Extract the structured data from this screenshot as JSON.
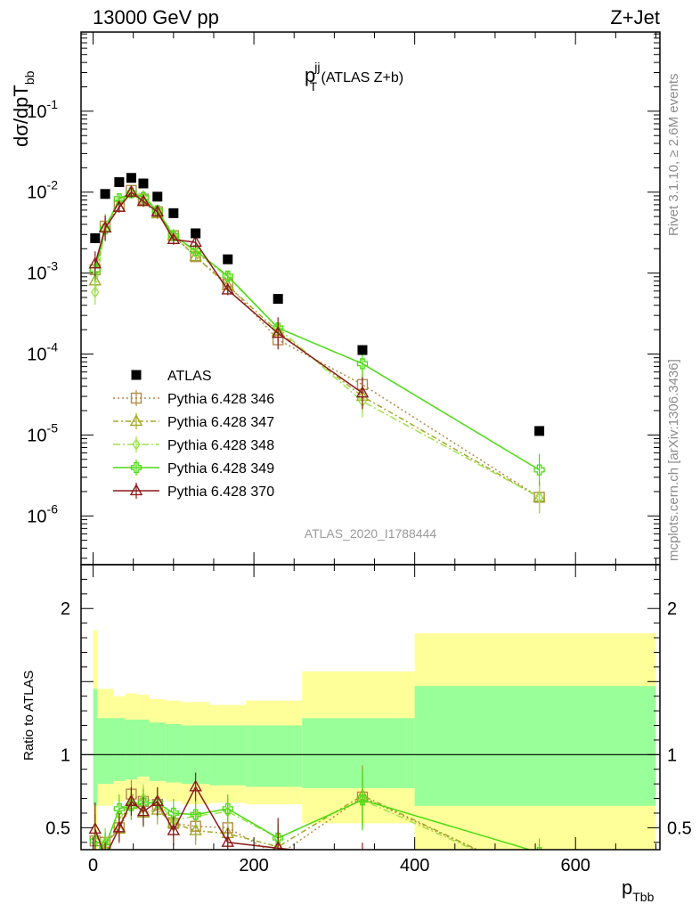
{
  "header": {
    "beam": "13000 GeV pp",
    "process": "Z+Jet"
  },
  "plot_title": {
    "main": "p",
    "sup": "jj",
    "sub": "T",
    "suffix": " (ATLAS Z+b)"
  },
  "main_ylabel": {
    "main": "dσ/dpT",
    "sub": "bb"
  },
  "ratio_ylabel": "Ratio to ATLAS",
  "xlabel": {
    "main": "p",
    "sub": "Tbb"
  },
  "analysis_label": "ATLAS_2020_I1788444",
  "side_texts": {
    "rivet": "Rivet 3.1.10, ≥ 2.6M events",
    "mcplots": "mcplots.cern.ch [arXiv:1306.3436]"
  },
  "colors": {
    "data": "#000000",
    "p346": "#b58a4a",
    "p347": "#a3a82a",
    "p348": "#9fe34a",
    "p349": "#4cdb14",
    "p370": "#8b1a1a",
    "band_outer": "#ffff99",
    "band_inner": "#99ff99"
  },
  "chart_data": [
    {
      "type": "scatter",
      "panel": "main",
      "yscale": "log",
      "xlim": [
        -15,
        705
      ],
      "ylim": [
        2.5e-07,
        0.95
      ],
      "x_ticks": [
        "0",
        "200",
        "400",
        "600"
      ],
      "y_ticks": [
        "10^-6",
        "10^-5",
        "10^-4",
        "10^-3",
        "10^-2",
        "10^-1"
      ],
      "legend_position": "lower-left",
      "series": [
        {
          "name": "ATLAS",
          "key": "data",
          "marker": "square",
          "x": [
            2.5,
            15,
            32.5,
            47.5,
            62.5,
            80,
            100,
            127.5,
            167.5,
            230,
            335,
            555
          ],
          "y": [
            0.0027,
            0.0095,
            0.0133,
            0.015,
            0.0128,
            0.0088,
            0.0055,
            0.0031,
            0.00148,
            0.00048,
            0.000112,
            1.12e-05
          ]
        },
        {
          "name": "Pythia 6.428 346",
          "key": "p346",
          "marker": "open-square",
          "dash": "2,3",
          "x": [
            2.5,
            15,
            32.5,
            47.5,
            62.5,
            80,
            100,
            127.5,
            167.5,
            230,
            335,
            555
          ],
          "y": [
            0.0011,
            0.0038,
            0.0067,
            0.0105,
            0.0082,
            0.0057,
            0.0029,
            0.0016,
            0.00073,
            0.00015,
            4.2e-05,
            1.7e-06
          ]
        },
        {
          "name": "Pythia 6.428 347",
          "key": "p347",
          "marker": "open-triangle",
          "dash": "6,3,2,3",
          "x": [
            2.5,
            15,
            32.5,
            47.5,
            62.5,
            80,
            100,
            127.5,
            167.5,
            230,
            335,
            555
          ],
          "y": [
            0.0008,
            0.0037,
            0.0065,
            0.0098,
            0.0076,
            0.0054,
            0.0029,
            0.0016,
            0.0007,
            0.00019,
            3e-05,
            1.7e-06
          ]
        },
        {
          "name": "Pythia 6.428 348",
          "key": "p348",
          "marker": "open-diamond",
          "dash": "8,3,2,3",
          "x": [
            2.5,
            15,
            32.5,
            47.5,
            62.5,
            80,
            100,
            127.5,
            167.5,
            230,
            335,
            555
          ],
          "y": [
            0.00058,
            0.0038,
            0.0078,
            0.0098,
            0.009,
            0.006,
            0.003,
            0.0018,
            0.0009,
            0.00021,
            2.6e-05,
            1.7e-06
          ]
        },
        {
          "name": "Pythia 6.428 349",
          "key": "p349",
          "marker": "open-cross",
          "dash": "",
          "x": [
            2.5,
            15,
            32.5,
            47.5,
            62.5,
            80,
            100,
            127.5,
            167.5,
            230,
            335,
            555
          ],
          "y": [
            0.0011,
            0.0035,
            0.0083,
            0.0098,
            0.0086,
            0.0059,
            0.0029,
            0.0019,
            0.00092,
            0.00021,
            7.6e-05,
            3.7e-06
          ]
        },
        {
          "name": "Pythia 6.428 370",
          "key": "p370",
          "marker": "open-triangle",
          "dash": "",
          "x": [
            2.5,
            15,
            32.5,
            47.5,
            62.5,
            80,
            100,
            127.5,
            167.5,
            230,
            335
          ],
          "y": [
            0.0013,
            0.0036,
            0.0065,
            0.01,
            0.0077,
            0.0057,
            0.0026,
            0.0024,
            0.00062,
            0.00018,
            3.3e-05
          ]
        }
      ]
    },
    {
      "type": "line",
      "panel": "ratio",
      "ylabel": "Ratio to ATLAS",
      "xlabel": "p_Tbb",
      "xlim": [
        -15,
        705
      ],
      "ylim": [
        0.35,
        2.3
      ],
      "y_ticks": [
        "0.5",
        "1",
        "2"
      ],
      "reference_line": 1,
      "bands": {
        "edges": [
          0,
          5,
          25,
          40,
          55,
          70,
          90,
          110,
          145,
          190,
          260,
          400,
          700
        ],
        "inner_low": [
          0.65,
          0.8,
          0.82,
          0.83,
          0.85,
          0.82,
          0.81,
          0.8,
          0.79,
          0.78,
          0.77,
          0.65
        ],
        "inner_high": [
          1.45,
          1.25,
          1.25,
          1.24,
          1.24,
          1.22,
          1.21,
          1.2,
          1.2,
          1.2,
          1.25,
          1.47
        ],
        "outer_low": [
          0.35,
          0.65,
          0.68,
          0.7,
          0.71,
          0.7,
          0.68,
          0.66,
          0.67,
          0.66,
          0.53,
          0.35
        ],
        "outer_high": [
          1.85,
          1.45,
          1.4,
          1.42,
          1.41,
          1.38,
          1.37,
          1.36,
          1.34,
          1.37,
          1.57,
          1.83
        ]
      },
      "series": [
        {
          "name": "Pythia 6.428 346",
          "key": "p346",
          "x": [
            2.5,
            15,
            32.5,
            47.5,
            62.5,
            80,
            100,
            127.5,
            167.5,
            230,
            335,
            555
          ],
          "y": [
            0.41,
            0.4,
            0.5,
            0.73,
            0.68,
            0.66,
            0.53,
            0.51,
            0.5,
            0.31,
            0.71,
            0.15
          ]
        },
        {
          "name": "Pythia 6.428 347",
          "key": "p347",
          "x": [
            2.5,
            15,
            32.5,
            47.5,
            62.5,
            80,
            100,
            127.5,
            167.5,
            230,
            335,
            555
          ],
          "y": [
            0.3,
            0.39,
            0.49,
            0.66,
            0.6,
            0.62,
            0.53,
            0.48,
            0.46,
            0.37,
            0.72,
            0.15
          ]
        },
        {
          "name": "Pythia 6.428 348",
          "key": "p348",
          "x": [
            2.5,
            15,
            32.5,
            47.5,
            62.5,
            80,
            100,
            127.5,
            167.5,
            230,
            335,
            555
          ],
          "y": [
            0.21,
            0.4,
            0.59,
            0.65,
            0.7,
            0.68,
            0.55,
            0.58,
            0.61,
            0.43,
            0.69,
            0.15
          ]
        },
        {
          "name": "Pythia 6.428 349",
          "key": "p349",
          "x": [
            2.5,
            15,
            32.5,
            47.5,
            62.5,
            80,
            100,
            127.5,
            167.5,
            230,
            335,
            555
          ],
          "y": [
            0.41,
            0.37,
            0.63,
            0.65,
            0.67,
            0.67,
            0.6,
            0.59,
            0.63,
            0.43,
            0.69,
            0.33
          ]
        },
        {
          "name": "Pythia 6.428 370",
          "key": "p370",
          "x": [
            2.5,
            15,
            32.5,
            47.5,
            62.5,
            80,
            100,
            127.5,
            167.5,
            230,
            335
          ],
          "y": [
            0.49,
            0.3,
            0.5,
            0.68,
            0.61,
            0.68,
            0.48,
            0.78,
            0.4,
            0.36,
            0.3
          ]
        }
      ]
    }
  ]
}
